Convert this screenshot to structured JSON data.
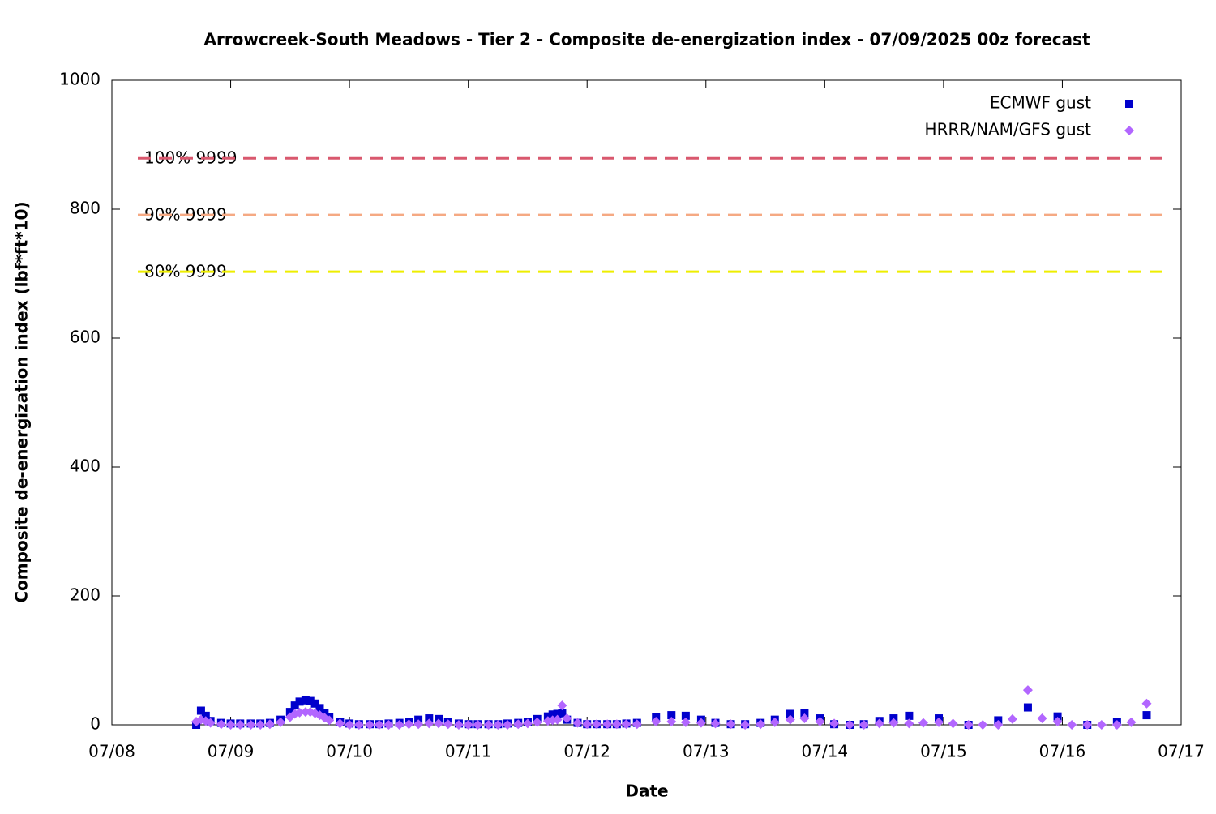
{
  "chart_data": {
    "type": "scatter",
    "title": "Arrowcreek-South Meadows - Tier 2 - Composite de-energization index - 07/09/2025 00z forecast",
    "xlabel": "Date",
    "ylabel": "Composite de-energization index (lbf*ft*10)",
    "xlim": [
      0,
      9
    ],
    "xticks": [
      {
        "value": 0,
        "label": "07/08"
      },
      {
        "value": 1,
        "label": "07/09"
      },
      {
        "value": 2,
        "label": "07/10"
      },
      {
        "value": 3,
        "label": "07/11"
      },
      {
        "value": 4,
        "label": "07/12"
      },
      {
        "value": 5,
        "label": "07/13"
      },
      {
        "value": 6,
        "label": "07/14"
      },
      {
        "value": 7,
        "label": "07/15"
      },
      {
        "value": 8,
        "label": "07/16"
      },
      {
        "value": 9,
        "label": "07/17"
      }
    ],
    "ylim": [
      0,
      1000
    ],
    "yticks": [
      0,
      200,
      400,
      600,
      800,
      1000
    ],
    "legend": "top-right",
    "thresholds": [
      {
        "label": "100% 9999",
        "value": 879,
        "color": "#d9586e"
      },
      {
        "label": "90% 9999",
        "value": 791,
        "color": "#f5a983"
      },
      {
        "label": "80% 9999",
        "value": 703,
        "color": "#eeee00"
      }
    ],
    "series": [
      {
        "name": "ECMWF gust",
        "color": "#0000cc",
        "marker": "square",
        "x": [
          0.71,
          0.75,
          0.79,
          0.83,
          0.92,
          1.0,
          1.08,
          1.17,
          1.25,
          1.33,
          1.42,
          1.5,
          1.54,
          1.58,
          1.63,
          1.67,
          1.71,
          1.75,
          1.79,
          1.83,
          1.92,
          2.0,
          2.08,
          2.17,
          2.25,
          2.33,
          2.42,
          2.5,
          2.58,
          2.67,
          2.75,
          2.83,
          2.92,
          3.0,
          3.08,
          3.17,
          3.25,
          3.33,
          3.42,
          3.5,
          3.58,
          3.67,
          3.71,
          3.75,
          3.79,
          3.83,
          3.92,
          4.0,
          4.08,
          4.17,
          4.25,
          4.33,
          4.42,
          4.58,
          4.71,
          4.83,
          4.96,
          5.08,
          5.21,
          5.33,
          5.46,
          5.58,
          5.71,
          5.83,
          5.96,
          6.08,
          6.21,
          6.33,
          6.46,
          6.58,
          6.71,
          6.96,
          7.21,
          7.46,
          7.71,
          7.96,
          8.21,
          8.46,
          8.71
        ],
        "values": [
          0,
          22,
          14,
          6,
          3,
          2,
          2,
          2,
          2,
          3,
          8,
          20,
          30,
          36,
          38,
          37,
          33,
          26,
          18,
          12,
          5,
          2,
          1,
          1,
          1,
          2,
          3,
          5,
          8,
          10,
          9,
          5,
          2,
          1,
          1,
          1,
          1,
          2,
          3,
          5,
          9,
          13,
          16,
          17,
          18,
          8,
          3,
          1,
          1,
          1,
          1,
          2,
          3,
          12,
          15,
          14,
          8,
          3,
          1,
          1,
          3,
          8,
          17,
          18,
          10,
          1,
          0,
          1,
          6,
          10,
          14,
          10,
          0,
          7,
          27,
          13,
          0,
          5,
          15
        ]
      },
      {
        "name": "HRRR/NAM/GFS gust",
        "color": "#b266ff",
        "marker": "diamond",
        "x": [
          0.71,
          0.75,
          0.79,
          0.83,
          0.92,
          1.0,
          1.08,
          1.17,
          1.25,
          1.33,
          1.42,
          1.5,
          1.54,
          1.58,
          1.63,
          1.67,
          1.71,
          1.75,
          1.79,
          1.83,
          1.92,
          2.0,
          2.08,
          2.17,
          2.25,
          2.33,
          2.42,
          2.5,
          2.58,
          2.67,
          2.75,
          2.83,
          2.92,
          3.0,
          3.08,
          3.17,
          3.25,
          3.33,
          3.42,
          3.5,
          3.58,
          3.67,
          3.71,
          3.75,
          3.79,
          3.83,
          3.92,
          4.0,
          4.08,
          4.17,
          4.25,
          4.33,
          4.42,
          4.58,
          4.71,
          4.83,
          4.96,
          5.08,
          5.21,
          5.33,
          5.46,
          5.58,
          5.71,
          5.83,
          5.96,
          6.08,
          6.21,
          6.33,
          6.46,
          6.58,
          6.71,
          6.83,
          6.96,
          7.08,
          7.21,
          7.33,
          7.46,
          7.58,
          7.71,
          7.83,
          7.96,
          8.08,
          8.21,
          8.33,
          8.46,
          8.58,
          8.71
        ],
        "values": [
          5,
          8,
          6,
          3,
          1,
          0,
          0,
          0,
          0,
          1,
          4,
          12,
          17,
          19,
          20,
          20,
          18,
          15,
          11,
          7,
          2,
          0,
          0,
          0,
          0,
          0,
          0,
          1,
          1,
          2,
          2,
          1,
          0,
          0,
          0,
          0,
          0,
          0,
          1,
          2,
          4,
          6,
          7,
          8,
          30,
          10,
          3,
          1,
          1,
          1,
          1,
          1,
          1,
          5,
          5,
          4,
          3,
          2,
          1,
          0,
          1,
          4,
          8,
          10,
          5,
          2,
          0,
          0,
          2,
          3,
          2,
          3,
          4,
          2,
          0,
          0,
          0,
          9,
          54,
          10,
          5,
          0,
          0,
          0,
          0,
          4,
          33
        ]
      }
    ]
  }
}
